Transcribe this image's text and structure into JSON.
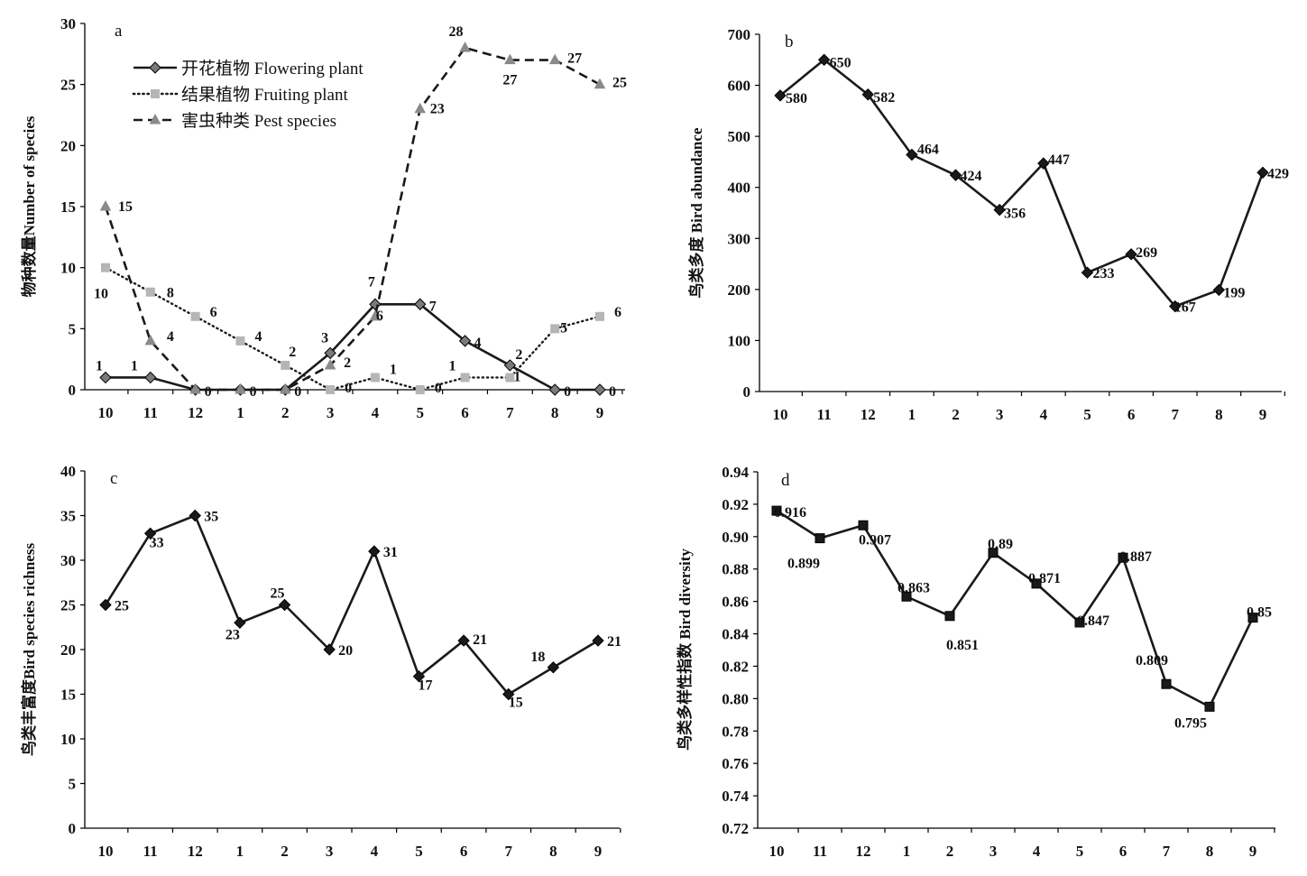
{
  "chart_data": [
    {
      "panel": "a",
      "type": "line",
      "categories": [
        "10",
        "11",
        "12",
        "1",
        "2",
        "3",
        "4",
        "5",
        "6",
        "7",
        "8",
        "9"
      ],
      "ylabel": "物种数量Number of species",
      "ylim": [
        0,
        30
      ],
      "yticks": [
        0,
        5,
        10,
        15,
        20,
        25,
        30
      ],
      "grid": false,
      "legend_position": "top-left",
      "series": [
        {
          "name": "开花植物 Flowering plant",
          "marker": "diamond",
          "line": "solid",
          "color": "#1a1a1a",
          "marker_color": "#7a7a7a",
          "values": [
            1,
            1,
            0,
            0,
            0,
            3,
            7,
            7,
            4,
            2,
            0,
            0
          ]
        },
        {
          "name": "结果植物 Fruiting plant",
          "marker": "square",
          "line": "dotted",
          "color": "#1a1a1a",
          "marker_color": "#b5b5b5",
          "values": [
            10,
            8,
            6,
            4,
            2,
            0,
            1,
            0,
            1,
            1,
            5,
            6
          ]
        },
        {
          "name": "害虫种类 Pest species",
          "marker": "triangle",
          "line": "dashed",
          "color": "#1a1a1a",
          "marker_color": "#8a8a8a",
          "values": [
            15,
            4,
            0,
            0,
            0,
            2,
            6,
            23,
            28,
            27,
            27,
            25
          ]
        }
      ]
    },
    {
      "panel": "b",
      "type": "line",
      "categories": [
        "10",
        "11",
        "12",
        "1",
        "2",
        "3",
        "4",
        "5",
        "6",
        "7",
        "8",
        "9"
      ],
      "ylabel": "鸟类多度 Bird abundance",
      "ylim": [
        0,
        700
      ],
      "yticks": [
        0,
        100,
        200,
        300,
        400,
        500,
        600,
        700
      ],
      "grid": false,
      "series": [
        {
          "name": "",
          "marker": "diamond",
          "line": "solid",
          "color": "#1a1a1a",
          "values": [
            580,
            650,
            582,
            464,
            424,
            356,
            447,
            233,
            269,
            167,
            199,
            429
          ]
        }
      ]
    },
    {
      "panel": "c",
      "type": "line",
      "categories": [
        "10",
        "11",
        "12",
        "1",
        "2",
        "3",
        "4",
        "5",
        "6",
        "7",
        "8",
        "9"
      ],
      "ylabel": "鸟类丰富度Bird species richness",
      "ylim": [
        0,
        40
      ],
      "yticks": [
        0,
        5,
        10,
        15,
        20,
        25,
        30,
        35,
        40
      ],
      "grid": false,
      "series": [
        {
          "name": "",
          "marker": "diamond",
          "line": "solid",
          "color": "#1a1a1a",
          "values": [
            25,
            33,
            35,
            23,
            25,
            20,
            31,
            17,
            21,
            15,
            18,
            21
          ]
        }
      ]
    },
    {
      "panel": "d",
      "type": "line",
      "categories": [
        "10",
        "11",
        "12",
        "1",
        "2",
        "3",
        "4",
        "5",
        "6",
        "7",
        "8",
        "9"
      ],
      "ylabel": "鸟类多样性指数 Bird diversity",
      "ylim": [
        0.72,
        0.94
      ],
      "yticks": [
        0.72,
        0.74,
        0.76,
        0.78,
        0.8,
        0.82,
        0.84,
        0.86,
        0.88,
        0.9,
        0.92,
        0.94
      ],
      "ytick_labels": [
        "0.72",
        "0.74",
        "0.76",
        "0.78",
        "0.80",
        "0.82",
        "0.84",
        "0.86",
        "0.88",
        "0.90",
        "0.92",
        "0.94"
      ],
      "grid": false,
      "series": [
        {
          "name": "",
          "marker": "square",
          "line": "solid",
          "color": "#1a1a1a",
          "values": [
            0.916,
            0.899,
            0.907,
            0.863,
            0.851,
            0.89,
            0.871,
            0.847,
            0.887,
            0.809,
            0.795,
            0.85
          ]
        }
      ]
    }
  ]
}
